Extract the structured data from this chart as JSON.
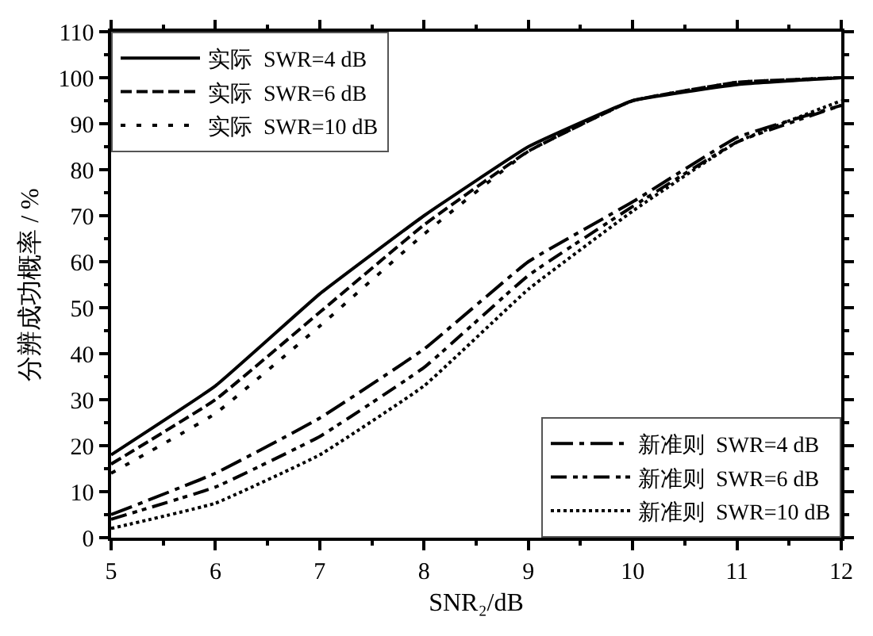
{
  "chart_data": {
    "type": "line",
    "x": [
      5,
      6,
      7,
      8,
      9,
      10,
      11,
      12
    ],
    "xlabel": "SNR₂/dB",
    "ylabel": "分辨成功概率 / %",
    "xlim": [
      5,
      12
    ],
    "xticks": [
      5,
      6,
      7,
      8,
      9,
      10,
      11,
      12
    ],
    "ylim": [
      0,
      110
    ],
    "yticks": [
      0,
      10,
      20,
      30,
      40,
      50,
      60,
      70,
      80,
      90,
      100,
      110
    ],
    "legend": [
      "top left",
      "bottom right"
    ],
    "marker": "none",
    "series": [
      {
        "name": "实际  SWR=4 dB",
        "color": "#000000",
        "line_style": "solid",
        "values": [
          18,
          33,
          53,
          70,
          85,
          95,
          98.5,
          100
        ]
      },
      {
        "name": "实际  SWR=6 dB",
        "color": "#000000",
        "line_style": "dashed",
        "values": [
          16,
          30,
          49,
          68,
          84,
          95,
          99,
          100
        ]
      },
      {
        "name": "实际  SWR=10 dB",
        "color": "#000000",
        "line_style": "dotted",
        "values": [
          14,
          27,
          46,
          66,
          84,
          95,
          99,
          100
        ]
      },
      {
        "name": "新准则  SWR=4 dB",
        "color": "#000000",
        "line_style": "dashdot",
        "values": [
          5,
          14,
          26,
          41,
          60,
          73,
          87,
          94
        ]
      },
      {
        "name": "新准则  SWR=6 dB",
        "color": "#000000",
        "line_style": "dashdotdot",
        "values": [
          4,
          11,
          22,
          37,
          57,
          72,
          86,
          94
        ]
      },
      {
        "name": "新准则  SWR=10 dB",
        "color": "#000000",
        "line_style": "densedotted",
        "values": [
          2,
          7.5,
          18,
          33,
          54,
          71,
          86,
          95
        ]
      }
    ]
  }
}
